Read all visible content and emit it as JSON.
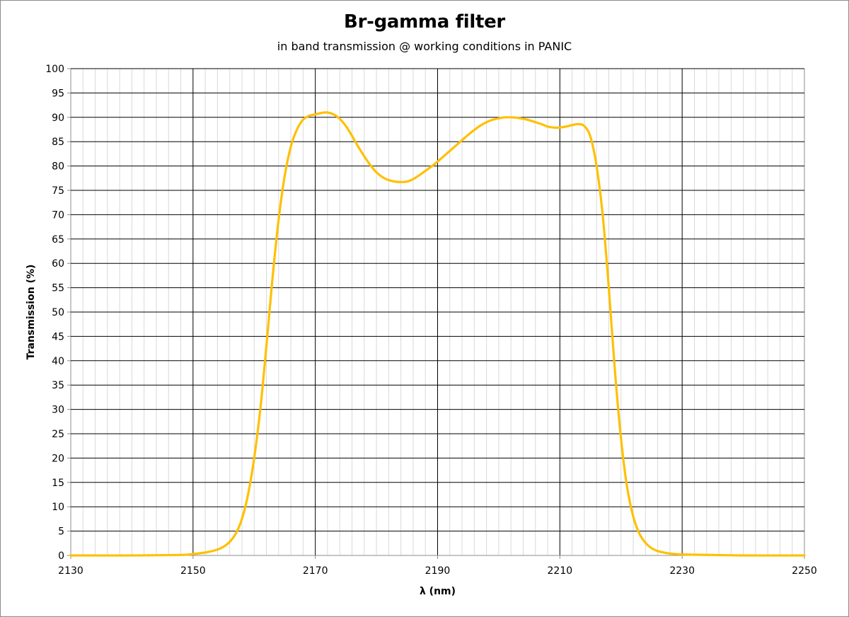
{
  "chart_data": {
    "type": "line",
    "title": "Br-gamma filter",
    "subtitle": "in band transmission @ working conditions in PANIC",
    "xlabel": "λ (nm)",
    "ylabel": "Transmission (%)",
    "xlim": [
      2130,
      2250
    ],
    "ylim": [
      0,
      100
    ],
    "x_ticks": [
      2130,
      2150,
      2170,
      2190,
      2210,
      2230,
      2250
    ],
    "y_ticks": [
      0,
      5,
      10,
      15,
      20,
      25,
      30,
      35,
      40,
      45,
      50,
      55,
      60,
      65,
      70,
      75,
      80,
      85,
      90,
      95,
      100
    ],
    "grid": true,
    "legend": false,
    "series_color": "#FFC000",
    "series": [
      {
        "x": [
          2130,
          2140,
          2148,
          2150,
          2152,
          2154,
          2155,
          2156,
          2157,
          2158,
          2159,
          2160,
          2161,
          2162,
          2163,
          2164,
          2165,
          2166,
          2167,
          2168,
          2169,
          2170,
          2171,
          2172,
          2173,
          2174,
          2175,
          2176,
          2177,
          2178,
          2179,
          2180,
          2181,
          2182,
          2183,
          2184,
          2185,
          2186,
          2187,
          2188,
          2189,
          2190,
          2191,
          2192,
          2193,
          2194,
          2195,
          2196,
          2197,
          2198,
          2199,
          2200,
          2201,
          2202,
          2203,
          2204,
          2205,
          2206,
          2207,
          2208,
          2209,
          2210,
          2211,
          2212,
          2213,
          2214,
          2215,
          2216,
          2217,
          2218,
          2219,
          2220,
          2221,
          2222,
          2223,
          2224,
          2225,
          2226,
          2227,
          2228,
          2230,
          2235,
          2240,
          2250
        ],
        "y": [
          0,
          0,
          0.1,
          0.3,
          0.6,
          1.2,
          1.8,
          2.8,
          4.5,
          7.5,
          12.5,
          20,
          30,
          43,
          57,
          69,
          78,
          84,
          87.5,
          89.5,
          90.3,
          90.6,
          90.9,
          91,
          90.6,
          89.7,
          88.2,
          86.2,
          84,
          82,
          80.2,
          78.7,
          77.7,
          77.1,
          76.8,
          76.7,
          76.8,
          77.3,
          78.1,
          79,
          79.9,
          80.9,
          82,
          83.1,
          84.2,
          85.3,
          86.4,
          87.4,
          88.3,
          89,
          89.5,
          89.8,
          90,
          90,
          89.9,
          89.7,
          89.4,
          89,
          88.6,
          88.1,
          87.9,
          87.9,
          88.1,
          88.4,
          88.6,
          88.2,
          86,
          80,
          70,
          55,
          38,
          24,
          14,
          8,
          4.5,
          2.6,
          1.5,
          0.9,
          0.6,
          0.4,
          0.2,
          0.1,
          0,
          0
        ]
      }
    ]
  }
}
